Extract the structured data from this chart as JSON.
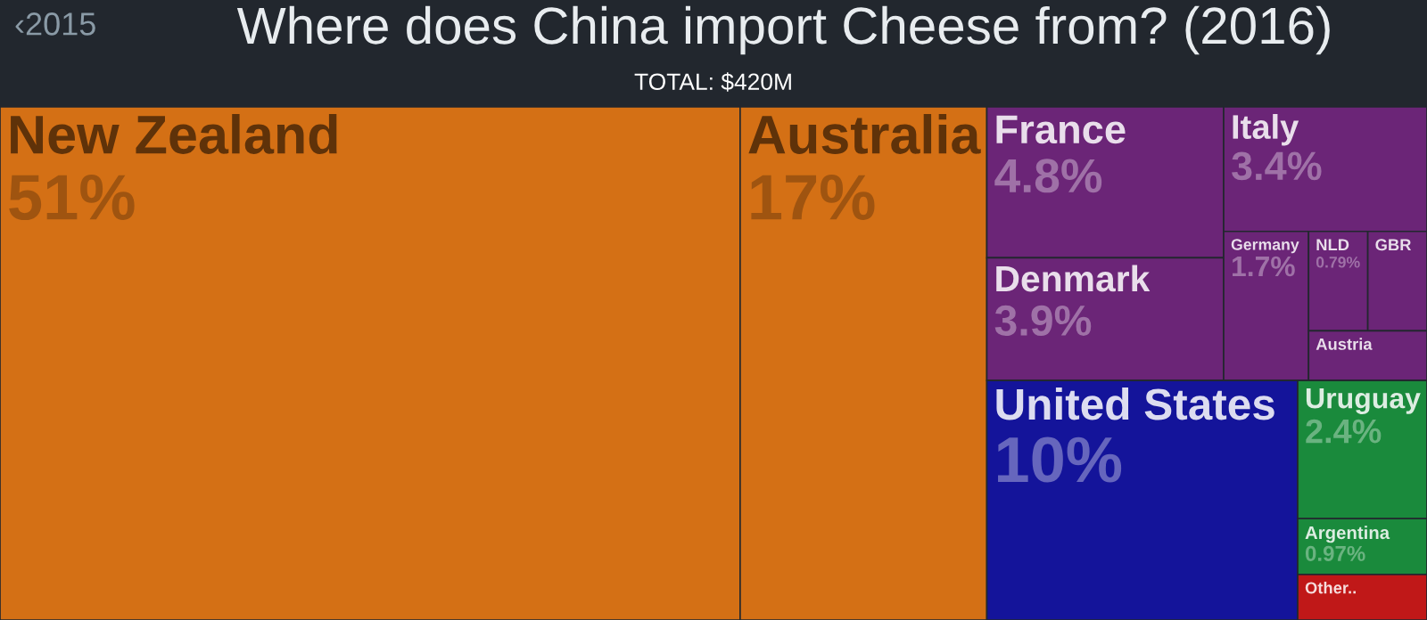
{
  "chart_data": {
    "type": "other",
    "title": "Where does China import Cheese from? (2016)",
    "subtitle": "TOTAL: $420M",
    "annotations": [
      "‹2015"
    ],
    "categories": [
      "New Zealand",
      "Australia",
      "France",
      "Denmark",
      "Italy",
      "Germany",
      "NLD",
      "GBR",
      "Austria",
      "United States",
      "Uruguay",
      "Argentina",
      "Other.."
    ],
    "values": [
      51,
      17,
      4.8,
      3.9,
      3.4,
      1.7,
      0.79,
      null,
      null,
      10,
      2.4,
      0.97,
      null
    ],
    "value_labels": [
      "51%",
      "17%",
      "4.8%",
      "3.9%",
      "3.4%",
      "1.7%",
      "0.79%",
      null,
      null,
      "10%",
      "2.4%",
      "0.97%",
      null
    ],
    "colors": [
      "#d47015",
      "#d47015",
      "#6b2577",
      "#6b2577",
      "#6b2577",
      "#6b2577",
      "#6b2577",
      "#6b2577",
      "#6b2577",
      "#14149a",
      "#1a8a3c",
      "#1a8a3c",
      "#c01818"
    ]
  }
}
